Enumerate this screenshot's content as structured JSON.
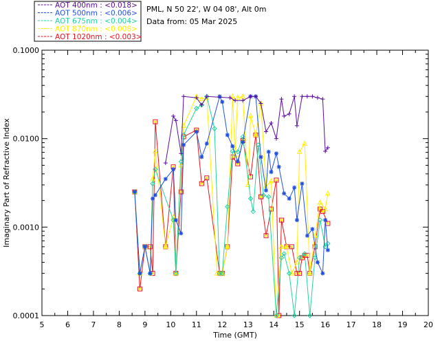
{
  "header": {
    "station": "PML, N 50 22', W 04 08', Alt 0m",
    "date_line": "Data from: 05 Mar 2025"
  },
  "chart_data": {
    "type": "line",
    "title": "",
    "xlabel": "Time (GMT)",
    "ylabel": "Imaginary Part of Refractive Index",
    "x_range": [
      5,
      20
    ],
    "y_range": [
      0.0001,
      0.1
    ],
    "y_scale": "log",
    "x_ticks": [
      "5",
      "6",
      "7",
      "8",
      "9",
      "10",
      "11",
      "12",
      "13",
      "14",
      "15",
      "16",
      "17",
      "18",
      "19",
      "20"
    ],
    "y_ticks": [
      "0.0001",
      "0.0010",
      "0.0100",
      "0.1000"
    ],
    "grid": false,
    "legend_position": "top-left, outside plot",
    "series": [
      {
        "name": "AOT  400nm : <0.018>",
        "color": "#5a0aa0",
        "marker": "plus",
        "points": [
          [
            9.8,
            0.0053
          ],
          [
            10.1,
            0.018
          ],
          [
            10.2,
            0.016
          ],
          [
            10.4,
            0.0068
          ],
          [
            10.5,
            0.03
          ],
          [
            11.0,
            0.029
          ],
          [
            11.2,
            0.024
          ],
          [
            11.4,
            0.03
          ],
          [
            12.3,
            0.029
          ],
          [
            12.5,
            0.027
          ],
          [
            12.8,
            0.027
          ],
          [
            13.1,
            0.03
          ],
          [
            13.3,
            0.03
          ],
          [
            13.5,
            0.025
          ],
          [
            13.7,
            0.012
          ],
          [
            13.9,
            0.015
          ],
          [
            14.1,
            0.01
          ],
          [
            14.3,
            0.028
          ],
          [
            14.4,
            0.018
          ],
          [
            14.6,
            0.019
          ],
          [
            14.8,
            0.03
          ],
          [
            14.9,
            0.014
          ],
          [
            15.1,
            0.03
          ],
          [
            15.3,
            0.03
          ],
          [
            15.5,
            0.03
          ],
          [
            15.7,
            0.029
          ],
          [
            15.9,
            0.028
          ],
          [
            16.0,
            0.0072
          ],
          [
            16.1,
            0.0079
          ]
        ]
      },
      {
        "name": "AOT  500nm : <0.006>",
        "color": "#1f4fe0",
        "marker": "star",
        "points": [
          [
            8.6,
            0.0025
          ],
          [
            8.8,
            0.0003
          ],
          [
            9.0,
            0.0006
          ],
          [
            9.2,
            0.0003
          ],
          [
            9.3,
            0.0021
          ],
          [
            9.4,
            0.0023
          ],
          [
            9.8,
            0.0035
          ],
          [
            10.1,
            0.0045
          ],
          [
            10.2,
            0.0012
          ],
          [
            10.4,
            0.00085
          ],
          [
            10.5,
            0.0085
          ],
          [
            11.0,
            0.012
          ],
          [
            11.2,
            0.0062
          ],
          [
            11.4,
            0.0088
          ],
          [
            11.9,
            0.03
          ],
          [
            12.0,
            0.026
          ],
          [
            12.2,
            0.011
          ],
          [
            12.4,
            0.0082
          ],
          [
            12.6,
            0.0055
          ],
          [
            12.8,
            0.0092
          ],
          [
            13.1,
            0.03
          ],
          [
            13.3,
            0.03
          ],
          [
            13.5,
            0.0062
          ],
          [
            13.7,
            0.0026
          ],
          [
            13.8,
            0.0071
          ],
          [
            13.9,
            0.0042
          ],
          [
            14.1,
            0.0068
          ],
          [
            14.2,
            0.0048
          ],
          [
            14.4,
            0.0024
          ],
          [
            14.6,
            0.0021
          ],
          [
            14.8,
            0.0028
          ],
          [
            14.9,
            0.0012
          ],
          [
            15.1,
            0.0031
          ],
          [
            15.3,
            0.0008
          ],
          [
            15.5,
            0.00095
          ],
          [
            15.7,
            0.0004
          ],
          [
            15.9,
            0.0003
          ],
          [
            16.0,
            0.0012
          ],
          [
            16.1,
            0.00055
          ]
        ]
      },
      {
        "name": "AOT  675nm : <0.004>",
        "color": "#22d2a0",
        "marker": "diamond",
        "points": [
          [
            8.6,
            0.0025
          ],
          [
            8.8,
            0.0003
          ],
          [
            9.0,
            0.0006
          ],
          [
            9.2,
            0.0003
          ],
          [
            9.3,
            0.0031
          ],
          [
            9.4,
            0.0045
          ],
          [
            10.1,
            0.0012
          ],
          [
            10.2,
            0.0003
          ],
          [
            10.4,
            0.0055
          ],
          [
            10.5,
            0.011
          ],
          [
            11.0,
            0.022
          ],
          [
            11.2,
            0.024
          ],
          [
            11.4,
            0.03
          ],
          [
            11.7,
            0.013
          ],
          [
            11.9,
            0.0003
          ],
          [
            12.0,
            0.0003
          ],
          [
            12.2,
            0.0017
          ],
          [
            12.4,
            0.0072
          ],
          [
            12.6,
            0.0071
          ],
          [
            12.8,
            0.0105
          ],
          [
            13.1,
            0.0021
          ],
          [
            13.2,
            0.0015
          ],
          [
            13.4,
            0.0085
          ],
          [
            13.6,
            0.0023
          ],
          [
            13.8,
            0.0022
          ],
          [
            14.1,
            0.0001
          ],
          [
            14.3,
            0.00045
          ],
          [
            14.4,
            0.0005
          ],
          [
            14.6,
            0.0003
          ],
          [
            14.8,
            0.0001
          ],
          [
            15.0,
            0.00045
          ],
          [
            15.2,
            0.0005
          ],
          [
            15.4,
            0.0001
          ],
          [
            15.6,
            0.00045
          ],
          [
            15.8,
            0.0012
          ],
          [
            16.0,
            0.0006
          ],
          [
            16.1,
            0.00065
          ]
        ]
      },
      {
        "name": "AOT  870nm : <0.008>",
        "color": "#ffee00",
        "marker": "triangle",
        "points": [
          [
            8.6,
            0.0025
          ],
          [
            8.8,
            0.0003
          ],
          [
            9.0,
            0.0006
          ],
          [
            9.2,
            0.0003
          ],
          [
            9.3,
            0.0035
          ],
          [
            9.4,
            0.0072
          ],
          [
            9.8,
            0.0006
          ],
          [
            10.1,
            0.0013
          ],
          [
            10.2,
            0.0003
          ],
          [
            10.4,
            0.005
          ],
          [
            10.5,
            0.014
          ],
          [
            11.0,
            0.03
          ],
          [
            11.2,
            0.028
          ],
          [
            11.4,
            0.029
          ],
          [
            11.8,
            0.0003
          ],
          [
            11.9,
            0.0003
          ],
          [
            12.0,
            0.0003
          ],
          [
            12.2,
            0.0006
          ],
          [
            12.4,
            0.03
          ],
          [
            12.5,
            0.0065
          ],
          [
            12.6,
            0.029
          ],
          [
            12.8,
            0.03
          ],
          [
            13.0,
            0.003
          ],
          [
            13.1,
            0.018
          ],
          [
            13.3,
            0.011
          ],
          [
            13.5,
            0.025
          ],
          [
            13.7,
            0.0029
          ],
          [
            13.9,
            0.0033
          ],
          [
            14.1,
            0.0001
          ],
          [
            14.3,
            0.0006
          ],
          [
            14.5,
            0.0006
          ],
          [
            14.7,
            0.0003
          ],
          [
            14.9,
            0.0004
          ],
          [
            15.0,
            0.0071
          ],
          [
            15.2,
            0.0088
          ],
          [
            15.4,
            0.0003
          ],
          [
            15.6,
            0.0008
          ],
          [
            15.8,
            0.0019
          ],
          [
            16.0,
            0.0016
          ],
          [
            16.1,
            0.0024
          ]
        ]
      },
      {
        "name": "AOT 1020nm : <0.003>",
        "color": "#e8131b",
        "marker": "square",
        "points": [
          [
            8.6,
            0.0025
          ],
          [
            8.8,
            0.0002
          ],
          [
            9.0,
            0.0006
          ],
          [
            9.2,
            0.0006
          ],
          [
            9.3,
            0.0003
          ],
          [
            9.4,
            0.0155
          ],
          [
            9.8,
            0.0006
          ],
          [
            10.1,
            0.0048
          ],
          [
            10.2,
            0.0003
          ],
          [
            10.4,
            0.0025
          ],
          [
            10.5,
            0.0105
          ],
          [
            11.0,
            0.0125
          ],
          [
            11.2,
            0.0031
          ],
          [
            11.4,
            0.0036
          ],
          [
            11.9,
            0.0003
          ],
          [
            12.0,
            0.0003
          ],
          [
            12.2,
            0.0006
          ],
          [
            12.4,
            0.0062
          ],
          [
            12.6,
            0.0052
          ],
          [
            12.8,
            0.0095
          ],
          [
            13.1,
            0.0037
          ],
          [
            13.3,
            0.011
          ],
          [
            13.5,
            0.0022
          ],
          [
            13.7,
            0.0008
          ],
          [
            13.9,
            0.0016
          ],
          [
            14.1,
            0.0034
          ],
          [
            14.2,
            0.0001
          ],
          [
            14.3,
            0.0012
          ],
          [
            14.5,
            0.0006
          ],
          [
            14.7,
            0.0006
          ],
          [
            14.9,
            0.0003
          ],
          [
            15.0,
            0.0003
          ],
          [
            15.1,
            0.00045
          ],
          [
            15.2,
            0.00048
          ],
          [
            15.3,
            0.00048
          ],
          [
            15.4,
            0.0003
          ],
          [
            15.6,
            0.0006
          ],
          [
            15.8,
            0.0016
          ],
          [
            15.9,
            0.0015
          ],
          [
            16.1,
            0.0011
          ]
        ]
      }
    ]
  }
}
